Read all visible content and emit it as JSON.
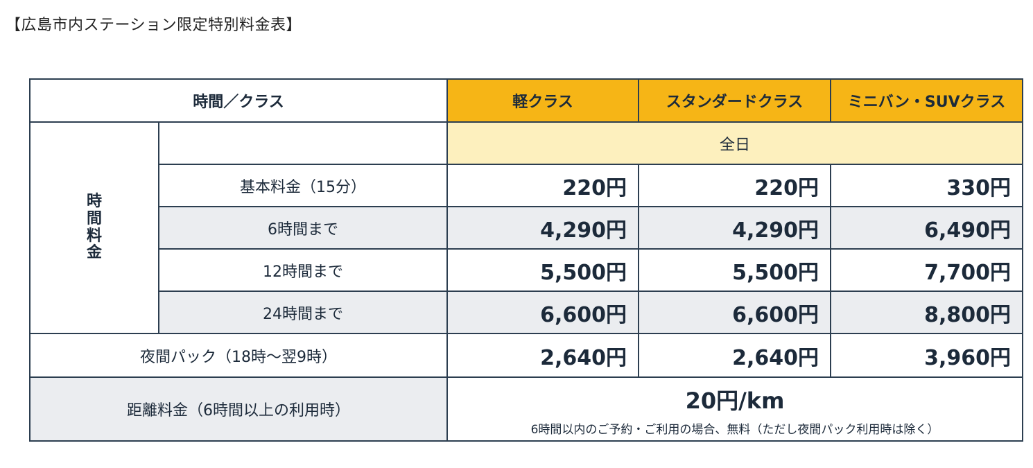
{
  "title": "【広島市内ステーション限定特別料金表】",
  "header": {
    "time_class": "時間／クラス",
    "classes": [
      "軽クラス",
      "スタンダードクラス",
      "ミニバン・SUVクラス"
    ]
  },
  "allday": "全日",
  "time_fee_label": [
    "時",
    "間",
    "料",
    "金"
  ],
  "rows": [
    {
      "label": "基本料金（15分）",
      "prices": [
        "220円",
        "220円",
        "330円"
      ]
    },
    {
      "label": "6時間まで",
      "prices": [
        "4,290円",
        "4,290円",
        "6,490円"
      ]
    },
    {
      "label": "12時間まで",
      "prices": [
        "5,500円",
        "5,500円",
        "7,700円"
      ]
    },
    {
      "label": "24時間まで",
      "prices": [
        "6,600円",
        "6,600円",
        "8,800円"
      ]
    }
  ],
  "night": {
    "label": "夜間パック（18時〜翌9時）",
    "prices": [
      "2,640円",
      "2,640円",
      "3,960円"
    ]
  },
  "distance": {
    "label": "距離料金（6時間以上の利用時）",
    "rate": "20円/km",
    "note": "6時間以内のご予約・ご利用の場合、無料（ただし夜間パック利用時は除く）"
  }
}
